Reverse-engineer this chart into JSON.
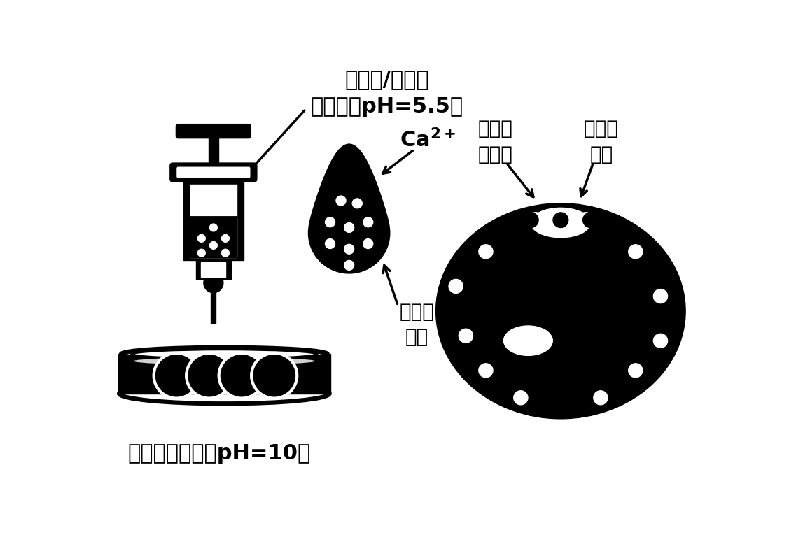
{
  "bg_color": "#ffffff",
  "label_syringe": "氯化钙/壳聚糖\n混合液（pH=5.5）",
  "label_ca": "Ca$^{2+}$",
  "label_chitosan": "壳聚糖\n溶液",
  "label_alginate_gel": "海藻酸\n钙凝胶",
  "label_chitosan_gel": "壳聚糖\n凝胶",
  "label_bottom": "海藻酸钠溶液（pH=10）"
}
